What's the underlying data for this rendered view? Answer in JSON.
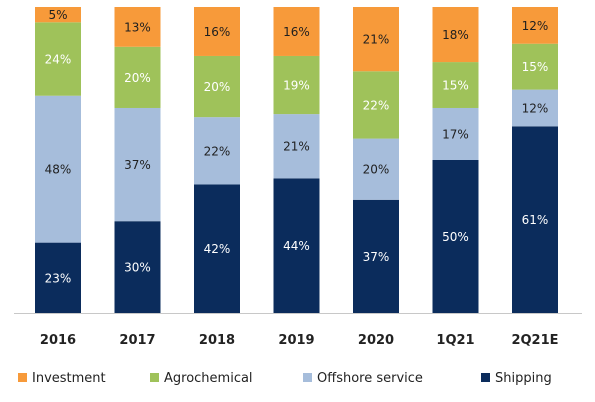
{
  "chart_data": {
    "type": "bar",
    "stacked": true,
    "percent_stacked": true,
    "categories": [
      "2016",
      "2017",
      "2018",
      "2019",
      "2020",
      "1Q21",
      "2Q21E"
    ],
    "series": [
      {
        "name": "Shipping",
        "color": "#0b2c5c",
        "label_color": "#ffffff",
        "values": [
          23,
          30,
          42,
          44,
          37,
          50,
          61
        ]
      },
      {
        "name": "Offshore service",
        "color": "#a6bddb",
        "label_color": "#1f1f1f",
        "values": [
          48,
          37,
          22,
          21,
          20,
          17,
          12
        ]
      },
      {
        "name": "Agrochemical",
        "color": "#9fc25a",
        "label_color": "#ffffff",
        "values": [
          24,
          20,
          20,
          19,
          22,
          15,
          15
        ]
      },
      {
        "name": "Investment",
        "color": "#f79a3a",
        "label_color": "#1f1f1f",
        "values": [
          5,
          13,
          16,
          16,
          21,
          18,
          12
        ]
      }
    ],
    "ylim": [
      0,
      100
    ],
    "grid": false,
    "legend_position": "bottom",
    "legend_order": [
      "Investment",
      "Agrochemical",
      "Offshore service",
      "Shipping"
    ],
    "value_suffix": "%"
  }
}
